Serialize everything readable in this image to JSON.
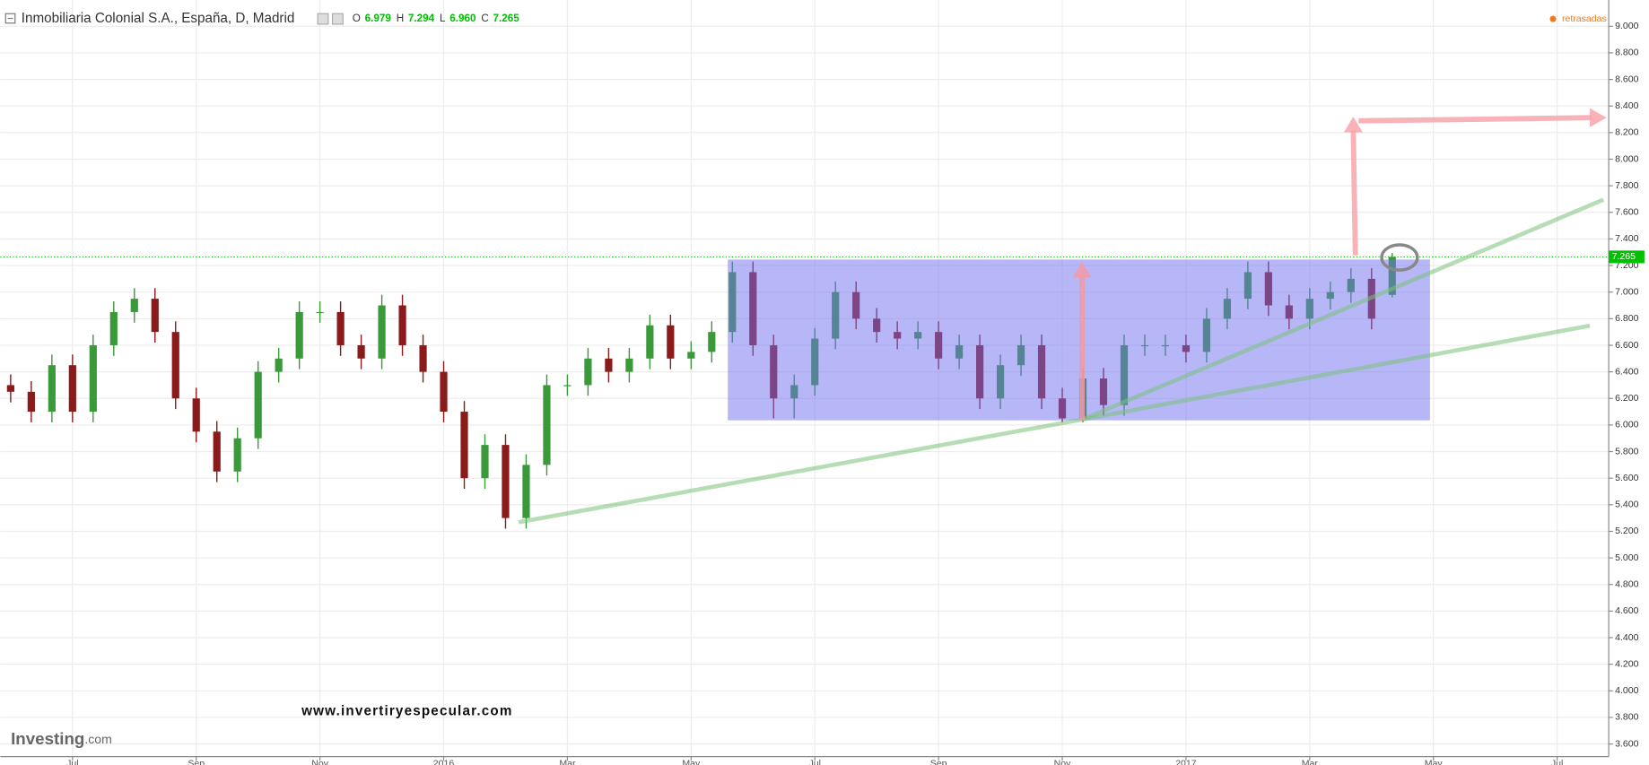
{
  "chart_data": {
    "type": "candlestick",
    "title": "Inmobiliaria Colonial S.A., España, D, Madrid",
    "ohlc_legend": [
      {
        "label": "O",
        "value": "6.979"
      },
      {
        "label": "H",
        "value": "7.294"
      },
      {
        "label": "L",
        "value": "6.960"
      },
      {
        "label": "C",
        "value": "7.265"
      }
    ],
    "status": "retrasadas",
    "watermark": "www.invertiryespecular.com",
    "logo": {
      "name": "Investing",
      "suffix": ".com"
    },
    "up_color": "#3a9a3a",
    "down_color": "#8b1a1a",
    "last_price_color": "#00c000",
    "grid": true,
    "categories": [
      null,
      null,
      null,
      "Jul",
      null,
      null,
      null,
      null,
      null,
      "Sep",
      null,
      null,
      null,
      null,
      null,
      "Nov",
      null,
      null,
      null,
      null,
      null,
      "2016",
      null,
      null,
      null,
      null,
      null,
      "Mar",
      null,
      null,
      null,
      null,
      null,
      "May",
      null,
      null,
      null,
      null,
      null,
      "Jul",
      null,
      null,
      null,
      null,
      null,
      "Sep",
      null,
      null,
      null,
      null,
      null,
      "Nov",
      null,
      null,
      null,
      null,
      null,
      "2017",
      null,
      null,
      null,
      null,
      null,
      "Mar",
      null,
      null,
      null,
      null,
      null,
      "May",
      null,
      null,
      null,
      null,
      null,
      "Jul",
      null,
      null
    ],
    "open": [
      6.3,
      6.25,
      6.1,
      6.45,
      6.1,
      6.6,
      6.85,
      6.95,
      6.7,
      6.2,
      5.95,
      5.65,
      5.9,
      6.4,
      6.5,
      6.85,
      6.85,
      6.6,
      6.5,
      6.9,
      6.6,
      6.4,
      6.1,
      5.6,
      5.85,
      5.3,
      5.7,
      6.3,
      6.3,
      6.5,
      6.4,
      6.5,
      6.75,
      6.5,
      6.55,
      6.7,
      7.15,
      6.6,
      6.2,
      6.3,
      6.65,
      7.0,
      6.8,
      6.7,
      6.65,
      6.7,
      6.5,
      6.6,
      6.2,
      6.45,
      6.6,
      6.2,
      6.05,
      6.35,
      6.15,
      6.6,
      6.6,
      6.6,
      6.55,
      6.8,
      6.95,
      7.15,
      6.9,
      6.8,
      6.95,
      7.0,
      7.1,
      6.979,
      null,
      null,
      null,
      null,
      null,
      null,
      null,
      null,
      null,
      null
    ],
    "high": [
      6.38,
      6.33,
      6.53,
      6.53,
      6.68,
      6.93,
      7.03,
      7.03,
      6.78,
      6.28,
      6.03,
      5.98,
      6.48,
      6.58,
      6.93,
      6.93,
      6.93,
      6.68,
      6.98,
      6.98,
      6.68,
      6.48,
      6.18,
      5.93,
      5.93,
      5.78,
      6.38,
      6.38,
      6.58,
      6.58,
      6.58,
      6.83,
      6.83,
      6.63,
      6.78,
      7.23,
      7.23,
      6.68,
      6.38,
      6.73,
      7.08,
      7.08,
      6.88,
      6.78,
      6.78,
      6.78,
      6.68,
      6.68,
      6.53,
      6.68,
      6.68,
      6.28,
      6.43,
      6.43,
      6.68,
      6.68,
      6.68,
      6.68,
      6.88,
      7.03,
      7.23,
      7.23,
      6.98,
      7.03,
      7.08,
      7.18,
      7.18,
      7.294,
      null,
      null,
      null,
      null,
      null,
      null,
      null,
      null,
      null,
      null
    ],
    "low": [
      6.17,
      6.02,
      6.02,
      6.02,
      6.02,
      6.52,
      6.77,
      6.62,
      6.12,
      5.87,
      5.57,
      5.57,
      5.82,
      6.32,
      6.42,
      6.77,
      6.52,
      6.42,
      6.42,
      6.52,
      6.32,
      6.02,
      5.52,
      5.52,
      5.22,
      5.22,
      5.62,
      6.22,
      6.22,
      6.32,
      6.32,
      6.42,
      6.42,
      6.42,
      6.47,
      6.62,
      6.52,
      6.05,
      6.05,
      6.22,
      6.57,
      6.72,
      6.62,
      6.57,
      6.57,
      6.42,
      6.42,
      6.12,
      6.12,
      6.37,
      6.12,
      6.02,
      6.02,
      6.07,
      6.07,
      6.52,
      6.52,
      6.47,
      6.47,
      6.72,
      6.87,
      6.82,
      6.72,
      6.72,
      6.87,
      6.92,
      6.72,
      6.96,
      null,
      null,
      null,
      null,
      null,
      null,
      null,
      null,
      null,
      null
    ],
    "close": [
      6.25,
      6.1,
      6.45,
      6.1,
      6.6,
      6.85,
      6.95,
      6.7,
      6.2,
      5.95,
      5.65,
      5.9,
      6.4,
      6.5,
      6.85,
      6.85,
      6.6,
      6.5,
      6.9,
      6.6,
      6.4,
      6.1,
      5.6,
      5.85,
      5.3,
      5.7,
      6.3,
      6.3,
      6.5,
      6.4,
      6.5,
      6.75,
      6.5,
      6.55,
      6.7,
      7.15,
      6.6,
      6.2,
      6.3,
      6.65,
      7.0,
      6.8,
      6.7,
      6.65,
      6.7,
      6.5,
      6.6,
      6.2,
      6.45,
      6.6,
      6.2,
      6.05,
      6.35,
      6.15,
      6.6,
      6.6,
      6.6,
      6.55,
      6.8,
      6.95,
      7.15,
      6.9,
      6.8,
      6.95,
      7.0,
      7.1,
      6.8,
      7.265,
      null,
      null,
      null,
      null,
      null,
      null,
      null,
      null,
      null,
      null
    ],
    "ylim": [
      3.5,
      9.1
    ],
    "yticks": [
      {
        "value": 3.6,
        "label": "3.600"
      },
      {
        "value": 3.8,
        "label": "3.800"
      },
      {
        "value": 4.0,
        "label": "4.000"
      },
      {
        "value": 4.2,
        "label": "4.200"
      },
      {
        "value": 4.4,
        "label": "4.400"
      },
      {
        "value": 4.6,
        "label": "4.600"
      },
      {
        "value": 4.8,
        "label": "4.800"
      },
      {
        "value": 5.0,
        "label": "5.000"
      },
      {
        "value": 5.2,
        "label": "5.200"
      },
      {
        "value": 5.4,
        "label": "5.400"
      },
      {
        "value": 5.6,
        "label": "5.600"
      },
      {
        "value": 5.8,
        "label": "5.800"
      },
      {
        "value": 6.0,
        "label": "6.000"
      },
      {
        "value": 6.2,
        "label": "6.200"
      },
      {
        "value": 6.4,
        "label": "6.400"
      },
      {
        "value": 6.6,
        "label": "6.600"
      },
      {
        "value": 6.8,
        "label": "6.800"
      },
      {
        "value": 7.0,
        "label": "7.000"
      },
      {
        "value": 7.2,
        "label": "7.200"
      },
      {
        "value": 7.4,
        "label": "7.400"
      },
      {
        "value": 7.6,
        "label": "7.600"
      },
      {
        "value": 7.8,
        "label": "7.800"
      },
      {
        "value": 8.0,
        "label": "8.000"
      },
      {
        "value": 8.2,
        "label": "8.200"
      },
      {
        "value": 8.4,
        "label": "8.400"
      },
      {
        "value": 8.6,
        "label": "8.600"
      },
      {
        "value": 8.8,
        "label": "8.800"
      },
      {
        "value": 9.0,
        "label": "9.000"
      }
    ]
  }
}
